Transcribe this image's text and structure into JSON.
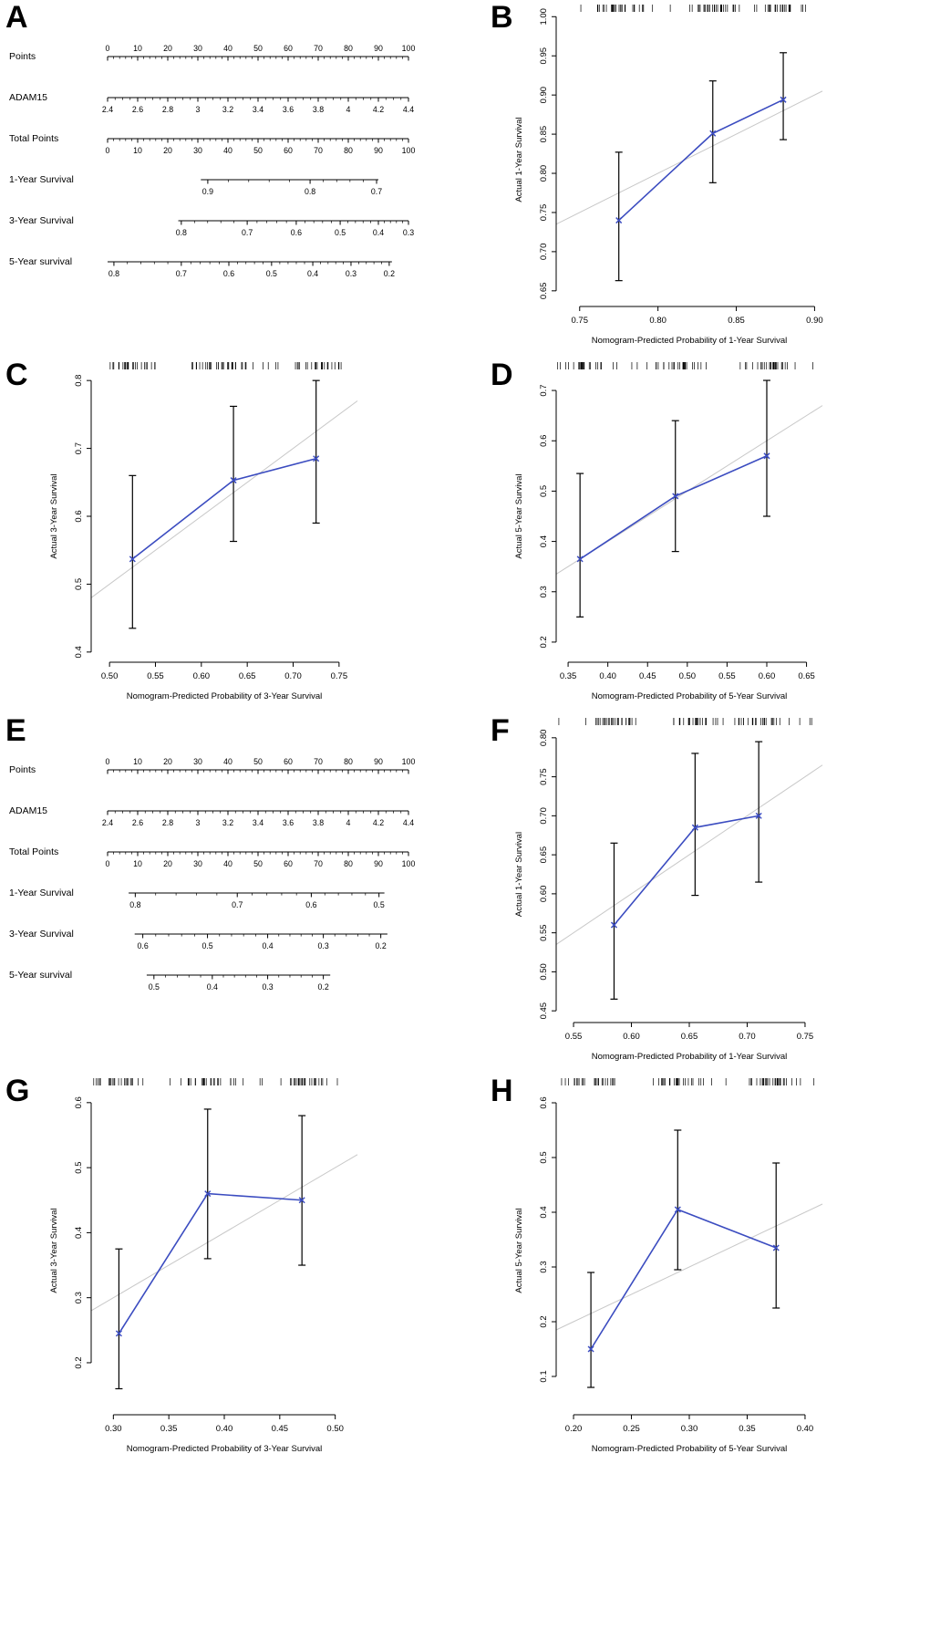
{
  "colors": {
    "line": "#3b4cc0",
    "error_bar": "#000000",
    "diagonal": "#c8c8c8",
    "axis": "#000000"
  },
  "panels": [
    {
      "label": "A"
    },
    {
      "label": "B"
    },
    {
      "label": "C"
    },
    {
      "label": "D"
    },
    {
      "label": "E"
    },
    {
      "label": "F"
    },
    {
      "label": "G"
    },
    {
      "label": "H"
    }
  ],
  "chart_data": [
    {
      "panel": "A",
      "type": "nomogram",
      "rows": [
        {
          "label": "Points",
          "start": 0,
          "end": 1,
          "labels_above": true,
          "minor": 4,
          "ticks": [
            [
              "0",
              0
            ],
            [
              "10",
              0.1
            ],
            [
              "20",
              0.2
            ],
            [
              "30",
              0.3
            ],
            [
              "40",
              0.4
            ],
            [
              "50",
              0.5
            ],
            [
              "60",
              0.6
            ],
            [
              "70",
              0.7
            ],
            [
              "80",
              0.8
            ],
            [
              "90",
              0.9
            ],
            [
              "100",
              1
            ]
          ]
        },
        {
          "label": "ADAM15",
          "start": 0,
          "end": 1,
          "labels_above": false,
          "minor": 3,
          "ticks": [
            [
              "2.4",
              0
            ],
            [
              "2.6",
              0.1
            ],
            [
              "2.8",
              0.2
            ],
            [
              "3",
              0.3
            ],
            [
              "3.2",
              0.4
            ],
            [
              "3.4",
              0.5
            ],
            [
              "3.6",
              0.6
            ],
            [
              "3.8",
              0.7
            ],
            [
              "4",
              0.8
            ],
            [
              "4.2",
              0.9
            ],
            [
              "4.4",
              1
            ]
          ]
        },
        {
          "label": "Total Points",
          "start": 0,
          "end": 1,
          "labels_above": false,
          "minor": 4,
          "ticks": [
            [
              "0",
              0
            ],
            [
              "10",
              0.1
            ],
            [
              "20",
              0.2
            ],
            [
              "30",
              0.3
            ],
            [
              "40",
              0.4
            ],
            [
              "50",
              0.5
            ],
            [
              "60",
              0.6
            ],
            [
              "70",
              0.7
            ],
            [
              "80",
              0.8
            ],
            [
              "90",
              0.9
            ],
            [
              "100",
              1
            ]
          ]
        },
        {
          "label": "1-Year Survival",
          "start": 0.31,
          "end": 0.9,
          "labels_above": false,
          "minor": 4,
          "ticks": [
            [
              "0.9",
              0.333
            ],
            [
              "0.8",
              0.673
            ],
            [
              "0.7",
              0.894
            ]
          ]
        },
        {
          "label": "3-Year Survival",
          "start": 0.235,
          "end": 1.0,
          "labels_above": false,
          "minor": 4,
          "ticks": [
            [
              "0.8",
              0.245
            ],
            [
              "0.7",
              0.464
            ],
            [
              "0.6",
              0.627
            ],
            [
              "0.5",
              0.773
            ],
            [
              "0.4",
              0.9
            ],
            [
              "0.3",
              1.0
            ]
          ]
        },
        {
          "label": "5-Year survival",
          "start": 0,
          "end": 0.945,
          "labels_above": false,
          "minor": 4,
          "ticks": [
            [
              "0.8",
              0.021
            ],
            [
              "0.7",
              0.245
            ],
            [
              "0.6",
              0.403
            ],
            [
              "0.5",
              0.545
            ],
            [
              "0.4",
              0.682
            ],
            [
              "0.3",
              0.809
            ],
            [
              "0.2",
              0.936
            ]
          ]
        }
      ]
    },
    {
      "panel": "B",
      "type": "calibration",
      "xlabel": "Nomogram-Predicted Probability of 1-Year Survival",
      "ylabel": "Actual 1-Year Survival",
      "x_ticks": [
        "0.75",
        "0.80",
        "0.85",
        "0.90"
      ],
      "y_ticks": [
        "0.65",
        "0.70",
        "0.75",
        "0.80",
        "0.85",
        "0.90",
        "0.95",
        "1.00"
      ],
      "xlim": [
        0.735,
        0.905
      ],
      "ylim": [
        0.63,
        1.005
      ],
      "x": [
        0.775,
        0.835,
        0.88
      ],
      "y": [
        0.74,
        0.851,
        0.894
      ],
      "lo": [
        0.663,
        0.788,
        0.843
      ],
      "hi": [
        0.827,
        0.918,
        0.954
      ]
    },
    {
      "panel": "C",
      "type": "calibration",
      "xlabel": "Nomogram-Predicted Probability of 3-Year Survival",
      "ylabel": "Actual 3-Year Survival",
      "x_ticks": [
        "0.50",
        "0.55",
        "0.60",
        "0.65",
        "0.70",
        "0.75"
      ],
      "y_ticks": [
        "0.4",
        "0.5",
        "0.6",
        "0.7",
        "0.8"
      ],
      "xlim": [
        0.48,
        0.77
      ],
      "ylim": [
        0.385,
        0.815
      ],
      "x": [
        0.525,
        0.635,
        0.725
      ],
      "y": [
        0.537,
        0.653,
        0.685
      ],
      "lo": [
        0.435,
        0.563,
        0.59
      ],
      "hi": [
        0.66,
        0.762,
        0.8
      ]
    },
    {
      "panel": "D",
      "type": "calibration",
      "xlabel": "Nomogram-Predicted Probability of 5-Year Survival",
      "ylabel": "Actual 5-Year Survival",
      "x_ticks": [
        "0.35",
        "0.40",
        "0.45",
        "0.50",
        "0.55",
        "0.60",
        "0.65"
      ],
      "y_ticks": [
        "0.2",
        "0.3",
        "0.4",
        "0.5",
        "0.6",
        "0.7"
      ],
      "xlim": [
        0.335,
        0.67
      ],
      "ylim": [
        0.16,
        0.74
      ],
      "x": [
        0.365,
        0.485,
        0.6
      ],
      "y": [
        0.365,
        0.49,
        0.57
      ],
      "lo": [
        0.25,
        0.38,
        0.45
      ],
      "hi": [
        0.535,
        0.64,
        0.72
      ]
    },
    {
      "panel": "E",
      "type": "nomogram",
      "rows": [
        {
          "label": "Points",
          "start": 0,
          "end": 1,
          "labels_above": true,
          "minor": 4,
          "ticks": [
            [
              "0",
              0
            ],
            [
              "10",
              0.1
            ],
            [
              "20",
              0.2
            ],
            [
              "30",
              0.3
            ],
            [
              "40",
              0.4
            ],
            [
              "50",
              0.5
            ],
            [
              "60",
              0.6
            ],
            [
              "70",
              0.7
            ],
            [
              "80",
              0.8
            ],
            [
              "90",
              0.9
            ],
            [
              "100",
              1
            ]
          ]
        },
        {
          "label": "ADAM15",
          "start": 0,
          "end": 1,
          "labels_above": false,
          "minor": 3,
          "ticks": [
            [
              "2.4",
              0
            ],
            [
              "2.6",
              0.1
            ],
            [
              "2.8",
              0.2
            ],
            [
              "3",
              0.3
            ],
            [
              "3.2",
              0.4
            ],
            [
              "3.4",
              0.5
            ],
            [
              "3.6",
              0.6
            ],
            [
              "3.8",
              0.7
            ],
            [
              "4",
              0.8
            ],
            [
              "4.2",
              0.9
            ],
            [
              "4.4",
              1
            ]
          ]
        },
        {
          "label": "Total Points",
          "start": 0,
          "end": 1,
          "labels_above": false,
          "minor": 4,
          "ticks": [
            [
              "0",
              0
            ],
            [
              "10",
              0.1
            ],
            [
              "20",
              0.2
            ],
            [
              "30",
              0.3
            ],
            [
              "40",
              0.4
            ],
            [
              "50",
              0.5
            ],
            [
              "60",
              0.6
            ],
            [
              "70",
              0.7
            ],
            [
              "80",
              0.8
            ],
            [
              "90",
              0.9
            ],
            [
              "100",
              1
            ]
          ]
        },
        {
          "label": "1-Year Survival",
          "start": 0.07,
          "end": 0.92,
          "labels_above": false,
          "minor": 4,
          "ticks": [
            [
              "0.8",
              0.092
            ],
            [
              "0.7",
              0.431
            ],
            [
              "0.6",
              0.677
            ],
            [
              "0.5",
              0.902
            ]
          ]
        },
        {
          "label": "3-Year Survival",
          "start": 0.09,
          "end": 0.93,
          "labels_above": false,
          "minor": 4,
          "ticks": [
            [
              "0.6",
              0.117
            ],
            [
              "0.5",
              0.332
            ],
            [
              "0.4",
              0.532
            ],
            [
              "0.3",
              0.717
            ],
            [
              "0.2",
              0.908
            ]
          ]
        },
        {
          "label": "5-Year survival",
          "start": 0.13,
          "end": 0.74,
          "labels_above": false,
          "minor": 4,
          "ticks": [
            [
              "0.5",
              0.154
            ],
            [
              "0.4",
              0.348
            ],
            [
              "0.3",
              0.532
            ],
            [
              "0.2",
              0.717
            ]
          ]
        }
      ]
    },
    {
      "panel": "F",
      "type": "calibration",
      "xlabel": "Nomogram-Predicted Probability of 1-Year Survival",
      "ylabel": "Actual 1-Year Survival",
      "x_ticks": [
        "0.55",
        "0.60",
        "0.65",
        "0.70",
        "0.75"
      ],
      "y_ticks": [
        "0.45",
        "0.50",
        "0.55",
        "0.60",
        "0.65",
        "0.70",
        "0.75",
        "0.80"
      ],
      "xlim": [
        0.535,
        0.765
      ],
      "ylim": [
        0.435,
        0.815
      ],
      "x": [
        0.585,
        0.655,
        0.71
      ],
      "y": [
        0.56,
        0.685,
        0.7
      ],
      "lo": [
        0.465,
        0.598,
        0.615
      ],
      "hi": [
        0.665,
        0.78,
        0.795
      ]
    },
    {
      "panel": "G",
      "type": "calibration",
      "xlabel": "Nomogram-Predicted Probability of 3-Year Survival",
      "ylabel": "Actual 3-Year Survival",
      "x_ticks": [
        "0.30",
        "0.35",
        "0.40",
        "0.45",
        "0.50"
      ],
      "y_ticks": [
        "0.2",
        "0.3",
        "0.4",
        "0.5",
        "0.6"
      ],
      "xlim": [
        0.28,
        0.52
      ],
      "ylim": [
        0.12,
        0.625
      ],
      "x": [
        0.305,
        0.385,
        0.47
      ],
      "y": [
        0.245,
        0.46,
        0.45
      ],
      "lo": [
        0.16,
        0.36,
        0.35
      ],
      "hi": [
        0.375,
        0.59,
        0.58
      ]
    },
    {
      "panel": "H",
      "type": "calibration",
      "xlabel": "Nomogram-Predicted Probability of 5-Year Survival",
      "ylabel": "Actual 5-Year Survival",
      "x_ticks": [
        "0.20",
        "0.25",
        "0.30",
        "0.35",
        "0.40"
      ],
      "y_ticks": [
        "0.1",
        "0.2",
        "0.3",
        "0.4",
        "0.5",
        "0.6"
      ],
      "xlim": [
        0.185,
        0.415
      ],
      "ylim": [
        0.03,
        0.63
      ],
      "x": [
        0.215,
        0.29,
        0.375
      ],
      "y": [
        0.15,
        0.405,
        0.335
      ],
      "lo": [
        0.08,
        0.295,
        0.225
      ],
      "hi": [
        0.29,
        0.55,
        0.49
      ]
    }
  ]
}
